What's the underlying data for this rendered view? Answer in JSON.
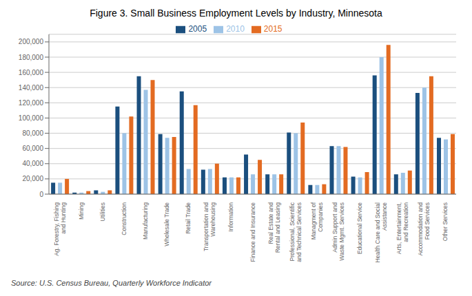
{
  "chart_data": {
    "type": "bar",
    "title": "Figure 3. Small Business Employment Levels by Industry, Minnesota",
    "source": "Source: U.S. Census Bureau, Quarterly Workforce Indicator",
    "categories": [
      "Ag. Forestry, Fishing\nand Hunting",
      "Mining",
      "Utilities",
      "Construction",
      "Manufacturing",
      "Wholesale Trade",
      "Retail Trade",
      "Transportation and\nWarehousing",
      "Information",
      "Finance and Insurance",
      "Real Estate and\nRental and Leasing",
      "Professional, Scientific\nand Technical Services",
      "Managment of\nCompanies",
      "Admin Support and\nWaste Mgmt. Services",
      "Educational Service",
      "Health Care and Social\nAssistance",
      "Arts, Entertainment,\nand Recreation",
      "Accommodation and\nFood Services",
      "Other Services"
    ],
    "series": [
      {
        "name": "2005",
        "color": "#1b4f7e",
        "values": [
          15000,
          2000,
          5000,
          115000,
          155000,
          79000,
          135000,
          32000,
          22000,
          52000,
          26000,
          81000,
          12000,
          63000,
          23000,
          156000,
          26000,
          133000,
          74000
        ]
      },
      {
        "name": "2010",
        "color": "#9dc3e6",
        "values": [
          15000,
          2000,
          3000,
          80000,
          137000,
          74000,
          33000,
          33000,
          22000,
          26000,
          26000,
          80000,
          12000,
          63000,
          22000,
          180000,
          28000,
          140000,
          72000
        ]
      },
      {
        "name": "2015",
        "color": "#e36b22",
        "values": [
          20000,
          4000,
          5000,
          102000,
          150000,
          75000,
          117000,
          40000,
          22000,
          45000,
          26000,
          94000,
          13000,
          62000,
          29000,
          196000,
          31000,
          155000,
          79000
        ]
      }
    ],
    "ylim": [
      0,
      210000
    ],
    "yticks": [
      0,
      {
        "value": 20000,
        "label": "20,000"
      },
      {
        "value": 40000,
        "label": "40,000"
      },
      {
        "value": 60000,
        "label": "60,000"
      },
      {
        "value": 80000,
        "label": "80,000"
      },
      {
        "value": 100000,
        "label": "100,000"
      },
      {
        "value": 120000,
        "label": "120,000"
      },
      {
        "value": 140000,
        "label": "140,000"
      },
      {
        "value": 160000,
        "label": "160,000"
      },
      {
        "value": 180000,
        "label": "180,000"
      },
      {
        "value": 200000,
        "label": "200,000"
      }
    ],
    "grid": true,
    "legend": "top"
  }
}
